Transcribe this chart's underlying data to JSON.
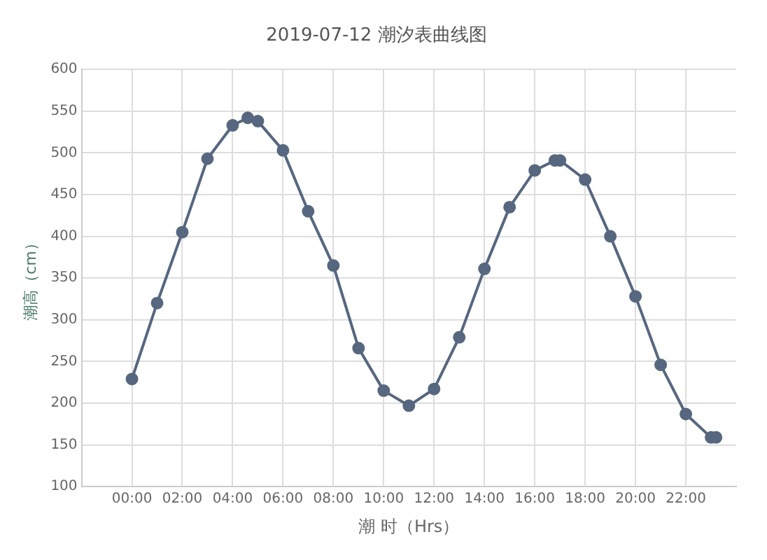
{
  "chart_data": {
    "type": "line",
    "title": "2019-07-12 潮汐表曲线图",
    "xlabel": "潮 时（Hrs）",
    "ylabel": "潮高（cm）",
    "x": [
      0,
      1,
      2,
      3,
      4,
      4.6,
      5,
      6,
      7,
      8,
      9,
      10,
      11,
      12,
      13,
      14,
      15,
      16,
      16.8,
      17,
      18,
      19,
      20,
      21,
      22,
      23,
      23.2
    ],
    "series": [
      {
        "color": "#56677f",
        "values": [
          229,
          320,
          405,
          493,
          533,
          542,
          538,
          503,
          430,
          365,
          266,
          215,
          197,
          217,
          279,
          361,
          435,
          479,
          491,
          491,
          468,
          400,
          328,
          246,
          187,
          159,
          159
        ]
      }
    ],
    "xlim": [
      -2,
      24
    ],
    "xticks": [
      {
        "value": 0,
        "label": "00:00"
      },
      {
        "value": 2,
        "label": "02:00"
      },
      {
        "value": 4,
        "label": "04:00"
      },
      {
        "value": 6,
        "label": "06:00"
      },
      {
        "value": 8,
        "label": "08:00"
      },
      {
        "value": 10,
        "label": "10:00"
      },
      {
        "value": 12,
        "label": "12:00"
      },
      {
        "value": 14,
        "label": "14:00"
      },
      {
        "value": 16,
        "label": "16:00"
      },
      {
        "value": 18,
        "label": "18:00"
      },
      {
        "value": 20,
        "label": "20:00"
      },
      {
        "value": 22,
        "label": "22:00"
      }
    ],
    "ylim": [
      100,
      600
    ],
    "yticks": [
      100,
      150,
      200,
      250,
      300,
      350,
      400,
      450,
      500,
      550,
      600
    ],
    "grid": true,
    "legend": false,
    "marker": "circle",
    "line_style": "solid"
  }
}
